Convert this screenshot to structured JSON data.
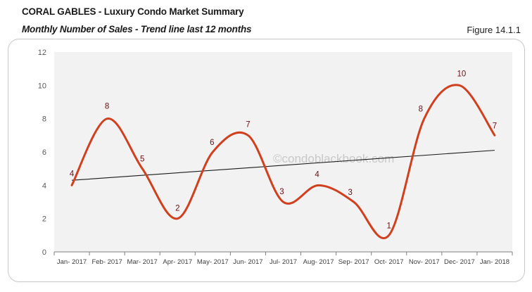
{
  "header": {
    "title": "CORAL GABLES - Luxury Condo Market Summary",
    "subtitle": "Monthly Number of Sales - Trend line last 12 months",
    "figure": "Figure 14.1.1"
  },
  "watermark": "©condoblackbook.com",
  "colors": {
    "series": "#d0401f",
    "trend": "#1a1a1a",
    "plot_bg": "#f2f2f2",
    "label": "#6b0f16"
  },
  "chart_data": {
    "type": "line",
    "title": "Monthly Number of Sales - Trend line last 12 months",
    "xlabel": "",
    "ylabel": "",
    "categories": [
      "Jan- 2017",
      "Feb- 2017",
      "Mar- 2017",
      "Apr- 2017",
      "May- 2017",
      "Jun- 2017",
      "Jul- 2017",
      "Aug- 2017",
      "Sep- 2017",
      "Oct- 2017",
      "Nov- 2017",
      "Dec- 2017",
      "Jan- 2018"
    ],
    "series": [
      {
        "name": "Number of Sales",
        "values": [
          4,
          8,
          5,
          2,
          6,
          7,
          3,
          4,
          3,
          1,
          8,
          10,
          7
        ],
        "smooth": true,
        "data_labels": true
      }
    ],
    "trendline": {
      "type": "linear",
      "start": 4.3,
      "end": 6.1
    },
    "yticks": [
      0,
      2,
      4,
      6,
      8,
      10,
      12
    ],
    "ylim": [
      0,
      12
    ],
    "grid": false,
    "legend": "none"
  }
}
